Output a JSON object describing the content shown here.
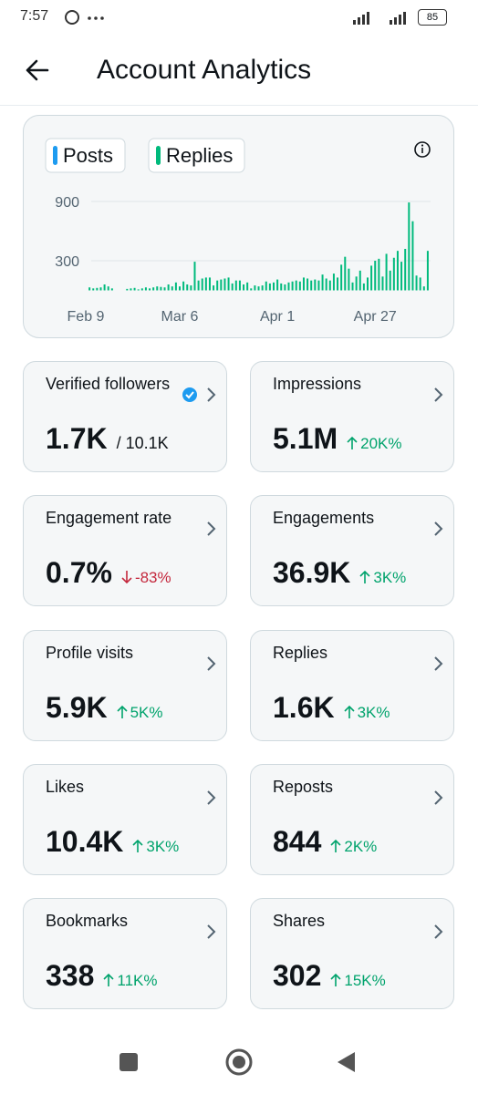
{
  "status_bar": {
    "time": "7:57",
    "battery": "85"
  },
  "header": {
    "title": "Account Analytics"
  },
  "chart_data": {
    "type": "bar",
    "toggles": [
      {
        "name": "Posts",
        "color": "#1d9bf0"
      }
    ],
    "categories": [
      "Feb 9",
      null,
      null,
      null,
      null,
      null,
      null,
      null,
      null,
      null,
      null,
      null,
      null,
      null,
      null,
      null,
      null,
      null,
      null,
      null,
      null,
      null,
      null,
      null,
      null,
      "Mar 6",
      null,
      null,
      null,
      null,
      null,
      null,
      null,
      null,
      null,
      null,
      null,
      null,
      null,
      null,
      null,
      null,
      null,
      null,
      null,
      null,
      null,
      null,
      null,
      null,
      null,
      "Apr 1",
      null,
      null,
      null,
      null,
      null,
      null,
      null,
      null,
      null,
      null,
      null,
      null,
      null,
      null,
      null,
      null,
      null,
      null,
      null,
      null,
      null,
      null,
      null,
      null,
      null,
      "Apr 27",
      null,
      null,
      null,
      null,
      null,
      null,
      null,
      null,
      null,
      null,
      null,
      null,
      null,
      null
    ],
    "series": [
      {
        "name": "Replies",
        "color": "#00ba7c",
        "values": [
          0,
          30,
          20,
          25,
          30,
          60,
          40,
          20,
          0,
          0,
          0,
          15,
          20,
          25,
          10,
          20,
          30,
          20,
          30,
          40,
          35,
          30,
          60,
          40,
          80,
          40,
          90,
          60,
          50,
          290,
          100,
          120,
          130,
          130,
          50,
          100,
          110,
          120,
          130,
          70,
          100,
          100,
          60,
          80,
          20,
          50,
          40,
          50,
          90,
          70,
          80,
          110,
          70,
          60,
          80,
          90,
          100,
          90,
          130,
          120,
          100,
          110,
          100,
          160,
          120,
          100,
          170,
          130,
          260,
          340,
          220,
          80,
          140,
          200,
          70,
          130,
          250,
          300,
          320,
          140,
          370,
          200,
          330,
          400,
          290,
          420,
          890,
          700,
          150,
          130,
          40,
          400
        ]
      }
    ],
    "ylim": [
      0,
      900
    ],
    "yticks": [
      300,
      900
    ],
    "grid": true
  },
  "cards": [
    {
      "label": "Verified followers",
      "value": "1.7K",
      "total": "/ 10.1K",
      "verified": true
    },
    {
      "label": "Impressions",
      "value": "5.1M",
      "change": "20K%",
      "direction": "up"
    },
    {
      "label": "Engagement rate",
      "value": "0.7%",
      "change": "-83%",
      "direction": "down"
    },
    {
      "label": "Engagements",
      "value": "36.9K",
      "change": "3K%",
      "direction": "up"
    },
    {
      "label": "Profile visits",
      "value": "5.9K",
      "change": "5K%",
      "direction": "up"
    },
    {
      "label": "Replies",
      "value": "1.6K",
      "change": "3K%",
      "direction": "up"
    },
    {
      "label": "Likes",
      "value": "10.4K",
      "change": "3K%",
      "direction": "up"
    },
    {
      "label": "Reposts",
      "value": "844",
      "change": "2K%",
      "direction": "up"
    },
    {
      "label": "Bookmarks",
      "value": "338",
      "change": "11K%",
      "direction": "up"
    },
    {
      "label": "Shares",
      "value": "302",
      "change": "15K%",
      "direction": "up"
    }
  ]
}
